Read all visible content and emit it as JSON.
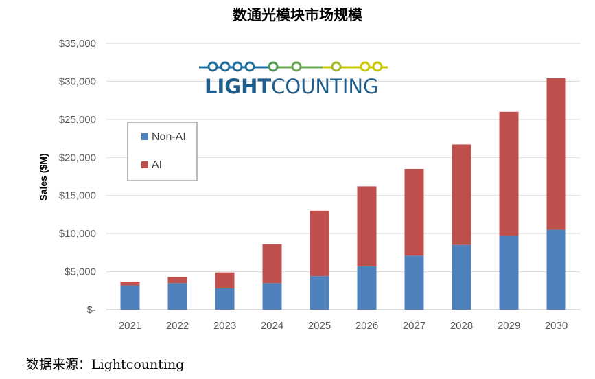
{
  "title": "数通光模块市场规模",
  "source": "数据来源：Lightcounting",
  "logo": {
    "text_bold": "LIGHT",
    "text_regular": "COUNTING"
  },
  "colors": {
    "non_ai": "#4f81bd",
    "ai": "#c0504d"
  },
  "chart_data": {
    "type": "bar",
    "stacked": true,
    "title": "数通光模块市场规模",
    "xlabel": "",
    "ylabel": "Sales ($M)",
    "ylim": [
      0,
      35000
    ],
    "yticks": [
      0,
      5000,
      10000,
      15000,
      20000,
      25000,
      30000,
      35000
    ],
    "ytick_labels": [
      "$-",
      "$5,000",
      "$10,000",
      "$15,000",
      "$20,000",
      "$25,000",
      "$30,000",
      "$35,000"
    ],
    "categories": [
      "2021",
      "2022",
      "2023",
      "2024",
      "2025",
      "2026",
      "2027",
      "2028",
      "2029",
      "2030"
    ],
    "series": [
      {
        "name": "Non-AI",
        "values": [
          3200,
          3500,
          2800,
          3500,
          4400,
          5700,
          7100,
          8500,
          9700,
          10500
        ]
      },
      {
        "name": "AI",
        "values": [
          500,
          800,
          2100,
          5100,
          8600,
          10500,
          11400,
          13200,
          16300,
          19900
        ]
      }
    ],
    "legend_position": "upper-left",
    "grid": true
  }
}
